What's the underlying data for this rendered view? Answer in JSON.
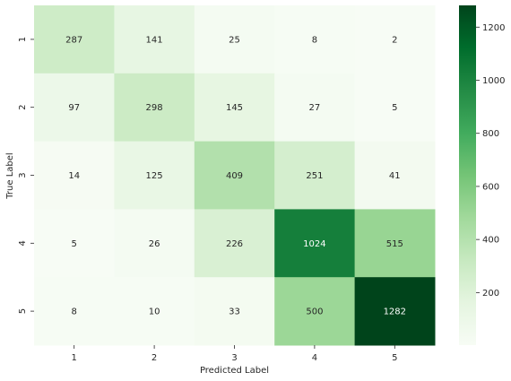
{
  "chart_data": {
    "type": "heatmap",
    "title": "",
    "xlabel": "Predicted Label",
    "ylabel": "True Label",
    "x_categories": [
      "1",
      "2",
      "3",
      "4",
      "5"
    ],
    "y_categories": [
      "1",
      "2",
      "3",
      "4",
      "5"
    ],
    "values": [
      [
        287,
        141,
        25,
        8,
        2
      ],
      [
        97,
        298,
        145,
        27,
        5
      ],
      [
        14,
        125,
        409,
        251,
        41
      ],
      [
        5,
        26,
        226,
        1024,
        515
      ],
      [
        8,
        10,
        33,
        500,
        1282
      ]
    ],
    "colormap": "Greens",
    "color_range": [
      2,
      1282
    ],
    "colorbar_ticks": [
      200,
      400,
      600,
      800,
      1000,
      1200
    ]
  }
}
